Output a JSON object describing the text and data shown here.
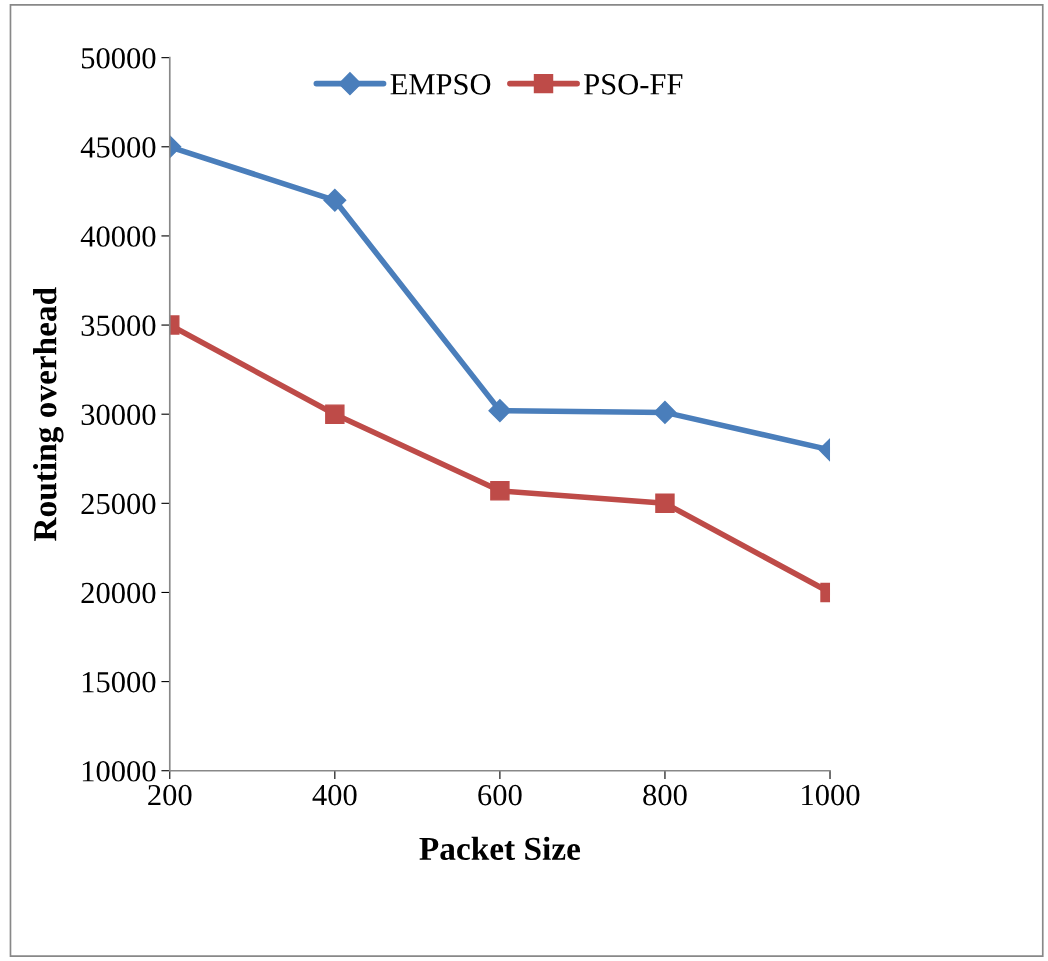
{
  "chart_data": {
    "type": "line",
    "xlabel": "Packet Size",
    "ylabel": "Routing overhead",
    "categories": [
      "200",
      "400",
      "600",
      "800",
      "1000"
    ],
    "series": [
      {
        "name": "EMPSO",
        "color": "#4a7ebb",
        "marker": "diamond",
        "values": [
          45000,
          42000,
          30200,
          30100,
          28000
        ]
      },
      {
        "name": "PSO-FF",
        "color": "#be4b48",
        "marker": "square",
        "values": [
          35000,
          30000,
          25700,
          25000,
          20000
        ]
      }
    ],
    "ylim": [
      10000,
      50000
    ],
    "yticks": [
      10000,
      15000,
      20000,
      25000,
      30000,
      35000,
      40000,
      45000,
      50000
    ],
    "grid": false,
    "legend": "top"
  }
}
